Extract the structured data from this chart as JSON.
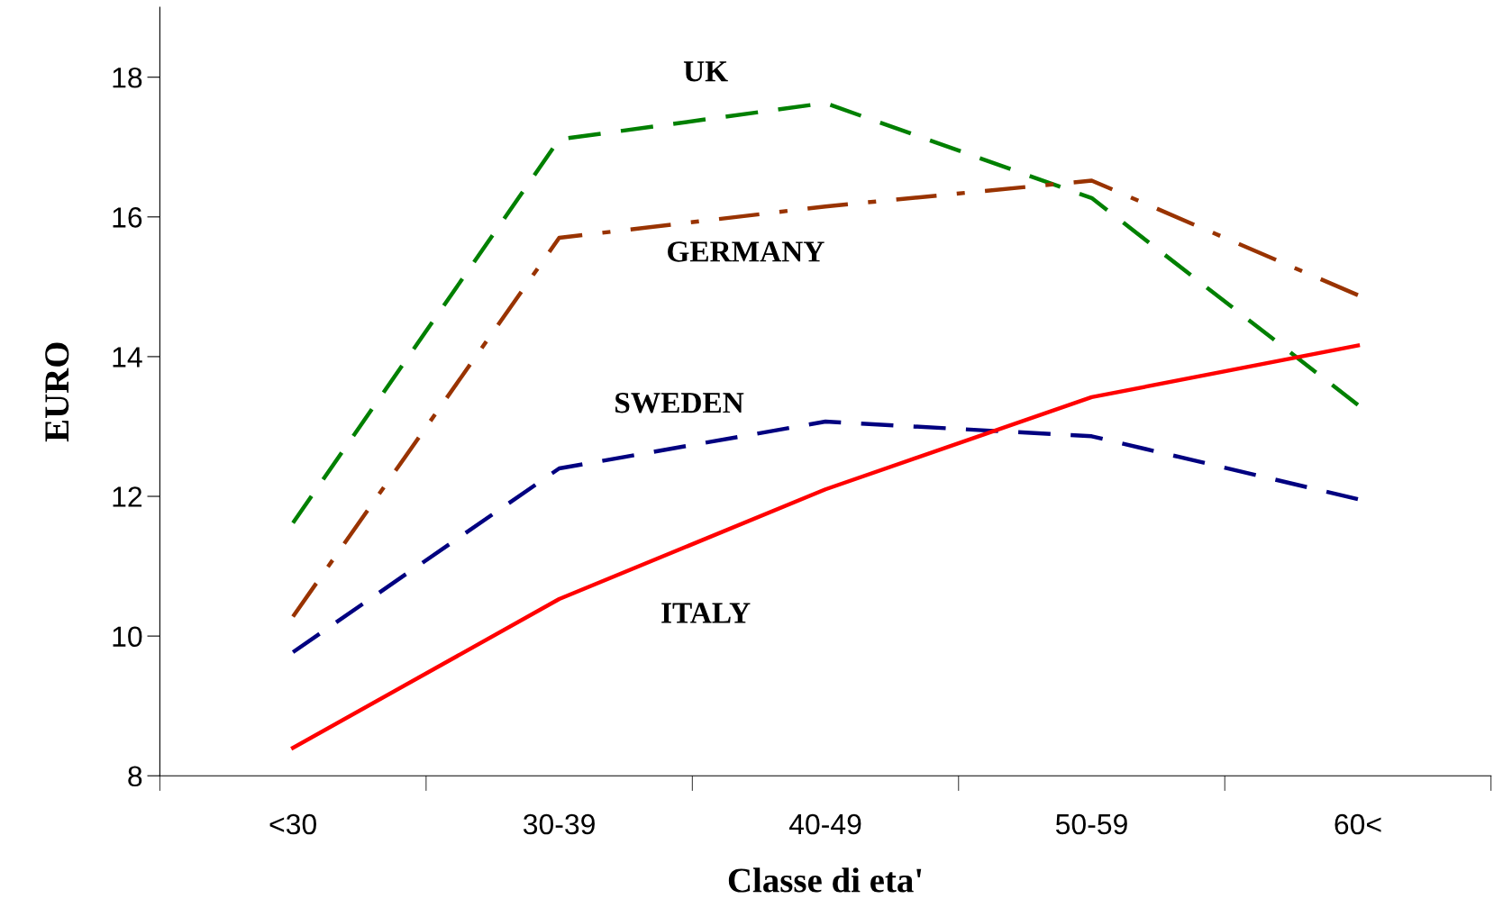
{
  "chart_data": {
    "type": "line",
    "xlabel": "Classe di eta'",
    "ylabel": "EURO",
    "categories": [
      "<30",
      "30-39",
      "40-49",
      "50-59",
      "60<"
    ],
    "ylim": [
      8,
      19
    ],
    "yticks": [
      8,
      10,
      12,
      14,
      16,
      18
    ],
    "grid": false,
    "legend": false,
    "marker": "none",
    "series": [
      {
        "name": "UK",
        "color": "#008000",
        "line_style": "dashed",
        "values": [
          11.62,
          17.11,
          17.63,
          16.27,
          13.31
        ]
      },
      {
        "name": "GERMANY",
        "color": "#993300",
        "line_style": "dashdot",
        "values": [
          10.28,
          15.7,
          16.15,
          16.52,
          14.88
        ]
      },
      {
        "name": "SWEDEN",
        "color": "#000080",
        "line_style": "dashed",
        "values": [
          9.77,
          12.4,
          13.07,
          12.86,
          11.96
        ]
      },
      {
        "name": "ITALY",
        "color": "#ff0000",
        "line_style": "solid",
        "values": [
          8.4,
          10.53,
          12.1,
          13.42,
          14.16
        ]
      }
    ]
  }
}
